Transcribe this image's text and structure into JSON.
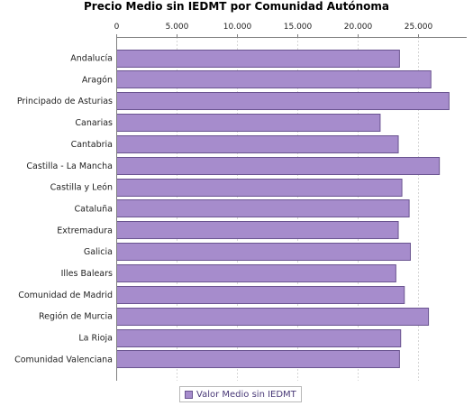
{
  "chart_data": {
    "type": "bar",
    "orientation": "horizontal",
    "title": "Precio Medio sin IEDMT por Comunidad Autónoma",
    "categories": [
      "Andalucía",
      "Aragón",
      "Principado de Asturias",
      "Canarias",
      "Cantabria",
      "Castilla - La Mancha",
      "Castilla y León",
      "Cataluña",
      "Extremadura",
      "Galicia",
      "Illes Balears",
      "Comunidad de Madrid",
      "Región de Murcia",
      "La Rioja",
      "Comunidad Valenciana"
    ],
    "series": [
      {
        "name": "Valor Medio sin IEDMT",
        "values": [
          23400,
          26000,
          27500,
          21800,
          23300,
          26700,
          23600,
          24200,
          23300,
          24300,
          23100,
          23800,
          25800,
          23500,
          23400
        ]
      }
    ],
    "x_axis": {
      "position": "top",
      "range": [
        0,
        29000
      ],
      "ticks": [
        0,
        5000,
        10000,
        15000,
        20000,
        25000
      ],
      "tick_labels": [
        "0",
        "5.000",
        "10.000",
        "15.000",
        "20.000",
        "25.000"
      ],
      "grid": true
    },
    "legend": {
      "placement": "bottom-center"
    },
    "colors": {
      "bar_fill": "#a68ccc",
      "bar_stroke": "#6a5490",
      "grid": "#d6d6d6",
      "axis": "#808080"
    }
  }
}
